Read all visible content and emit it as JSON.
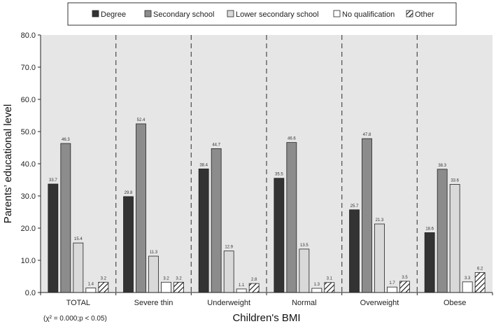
{
  "chart_data": {
    "type": "bar",
    "title": "",
    "xlabel": "Children's BMI",
    "ylabel": "Parents’ educational level",
    "ylim": [
      0,
      80
    ],
    "yticks": [
      "0.0",
      "10.0",
      "20.0",
      "30.0",
      "40.0",
      "50.0",
      "60.0",
      "70.0",
      "80.0"
    ],
    "categories": [
      "TOTAL",
      "Severe thin",
      "Underweight",
      "Normal",
      "Overweight",
      "Obese"
    ],
    "series": [
      {
        "name": "Degree",
        "values": [
          33.7,
          29.8,
          38.4,
          35.5,
          25.7,
          18.6
        ],
        "labels": [
          "33.7",
          "29.8",
          "38.4",
          "35.5",
          "25.7",
          "18.6"
        ],
        "color": "#333333",
        "pattern": "solid"
      },
      {
        "name": "Secondary school",
        "values": [
          46.3,
          52.4,
          44.7,
          46.6,
          47.8,
          38.3
        ],
        "labels": [
          "46.3",
          "52.4",
          "44.7",
          "46.6",
          "47.8",
          "38.3"
        ],
        "color": "#8c8c8c",
        "pattern": "solid"
      },
      {
        "name": "Lower secondary school",
        "values": [
          15.4,
          11.3,
          12.9,
          13.5,
          21.3,
          33.6
        ],
        "labels": [
          "15.4",
          "11.3",
          "12.9",
          "13.5",
          "21.3",
          "33.6"
        ],
        "color": "#d9d9d9",
        "pattern": "solid"
      },
      {
        "name": "No qualification",
        "values": [
          1.4,
          3.2,
          1.1,
          1.3,
          1.7,
          3.3
        ],
        "labels": [
          "1.4",
          "3.2",
          "1.1",
          "1.3",
          "1.7",
          "3.3"
        ],
        "color": "#ffffff",
        "pattern": "solid"
      },
      {
        "name": "Other",
        "values": [
          3.2,
          3.2,
          2.8,
          3.1,
          3.5,
          6.2
        ],
        "labels": [
          "3.2",
          "3.2",
          "2.8",
          "3.1",
          "3.5",
          "6.2"
        ],
        "color": "#ffffff",
        "pattern": "hatch"
      }
    ],
    "legend_position": "top",
    "background": "#e6e6e6",
    "grid": false,
    "group_separators": "dashed",
    "annotation": "(χ² = 0.000;p < 0.05)"
  }
}
